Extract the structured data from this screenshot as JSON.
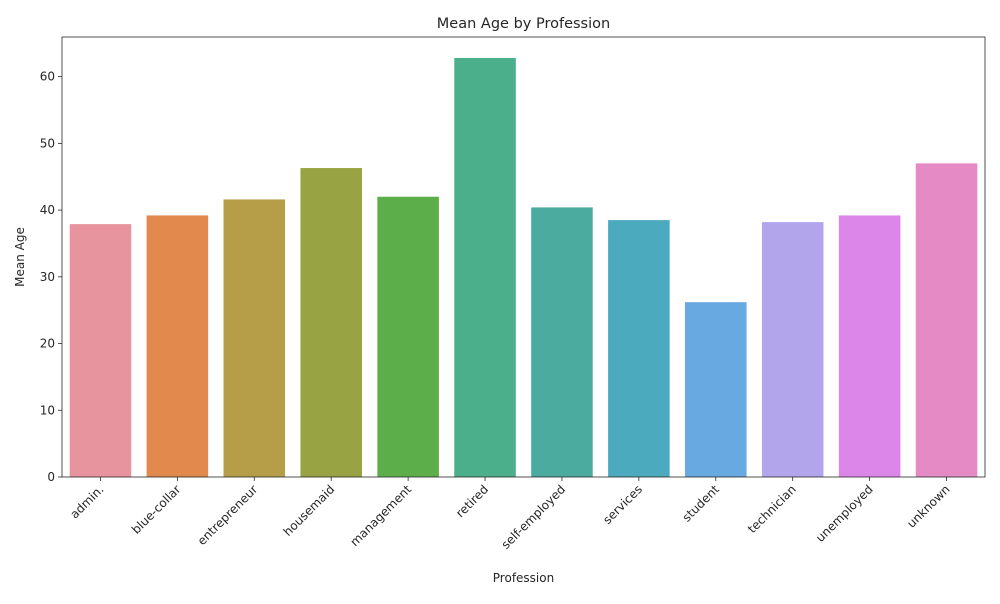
{
  "chart_data": {
    "type": "bar",
    "title": "Mean Age by Profession",
    "xlabel": "Profession",
    "ylabel": "Mean Age",
    "categories": [
      "admin.",
      "blue-collar",
      "entrepreneur",
      "housemaid",
      "management",
      "retired",
      "self-employed",
      "services",
      "student",
      "technician",
      "unemployed",
      "unknown"
    ],
    "values": [
      37.9,
      39.2,
      41.6,
      46.3,
      42.0,
      62.8,
      40.4,
      38.5,
      26.2,
      38.2,
      39.2,
      47.0
    ],
    "colors": [
      "#e8949e",
      "#e2894d",
      "#b69e48",
      "#98a343",
      "#5cae4b",
      "#4aaf8a",
      "#4aab9e",
      "#4baabd",
      "#67a9e0",
      "#b3a5ec",
      "#dc86ea",
      "#e58ac5"
    ],
    "ylim": [
      0,
      65.94
    ],
    "yticks": [
      0,
      10,
      20,
      30,
      40,
      50,
      60
    ],
    "grid": false,
    "legend": "none"
  }
}
